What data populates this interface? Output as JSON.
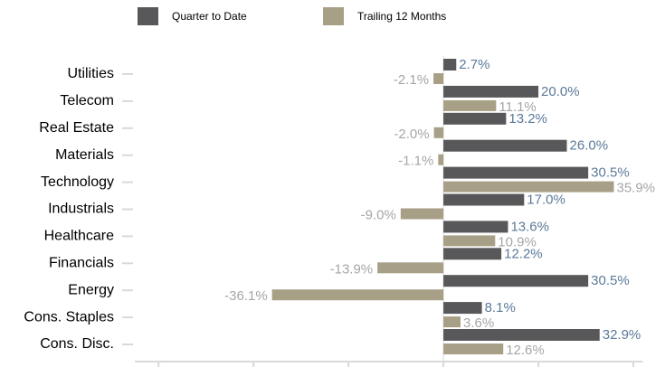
{
  "chart_data": {
    "type": "hbar",
    "categories": [
      "Utilities",
      "Telecom",
      "Real Estate",
      "Materials",
      "Technology",
      "Industrials",
      "Healthcare",
      "Financials",
      "Energy",
      "Cons. Staples",
      "Cons. Disc."
    ],
    "series": [
      {
        "name": "Quarter to Date",
        "color": "#58585a",
        "label_color": "#5b7a99",
        "values": [
          2.7,
          20.0,
          13.2,
          26.0,
          30.5,
          17.0,
          13.6,
          12.2,
          30.5,
          8.1,
          32.9
        ],
        "value_labels": [
          "2.7%",
          "20.0%",
          "13.2%",
          "26.0%",
          "30.5%",
          "17.0%",
          "13.6%",
          "12.2%",
          "30.5%",
          "8.1%",
          "32.9%"
        ]
      },
      {
        "name": "Trailing 12 Months",
        "color": "#a89f87",
        "label_color": "#a6a6a6",
        "values": [
          -2.1,
          11.1,
          -2.0,
          -1.1,
          35.9,
          -9.0,
          10.9,
          -13.9,
          -36.1,
          3.6,
          12.6
        ],
        "value_labels": [
          "-2.1%",
          "11.1%",
          "-2.0%",
          "-1.1%",
          "35.9%",
          "-9.0%",
          "10.9%",
          "-13.9%",
          "-36.1%",
          "3.6%",
          "12.6%"
        ]
      }
    ],
    "xlim": [
      -65,
      42
    ],
    "xticks": [
      -60,
      -40,
      -20,
      0,
      20,
      40
    ],
    "legend": "top"
  }
}
